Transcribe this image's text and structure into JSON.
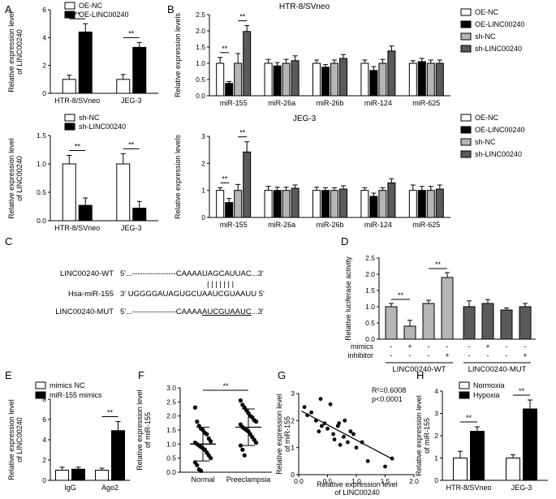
{
  "panel_labels": [
    "A",
    "B",
    "C",
    "D",
    "E",
    "F",
    "G",
    "H"
  ],
  "colors": {
    "white": "#ffffff",
    "black": "#000000",
    "light_gray": "#b5b5b5",
    "dark_gray": "#5a5a5a",
    "mid_gray": "#999999",
    "stroke": "#000000"
  },
  "chart_data": [
    {
      "id": "A_top",
      "type": "bar",
      "panel": "A",
      "ylabel": "Relative expression level of LINC00240",
      "ylim": [
        0,
        6
      ],
      "yticks": [
        "0",
        "2",
        "4",
        "6"
      ],
      "categories": [
        "HTR-8/SVneo",
        "JEG-3"
      ],
      "legend": [
        "OE-NC",
        "OE-LINC00240"
      ],
      "series": [
        {
          "name": "OE-NC",
          "values": [
            1.0,
            1.0
          ],
          "errors": [
            0.3,
            0.35
          ]
        },
        {
          "name": "OE-LINC00240",
          "values": [
            4.4,
            3.3
          ],
          "errors": [
            0.6,
            0.35
          ]
        }
      ],
      "significance": [
        "**",
        "**"
      ]
    },
    {
      "id": "A_bottom",
      "type": "bar",
      "panel": "A",
      "ylabel": "Relative expression level of LINC00240",
      "ylim": [
        0,
        1.5
      ],
      "yticks": [
        "0.0",
        "0.5",
        "1.0",
        "1.5"
      ],
      "categories": [
        "HTR-8/SVneo",
        "JEG-3"
      ],
      "legend": [
        "sh-NC",
        "sh-LINC00240"
      ],
      "series": [
        {
          "name": "sh-NC",
          "values": [
            1.0,
            1.0
          ],
          "errors": [
            0.15,
            0.18
          ]
        },
        {
          "name": "sh-LINC00240",
          "values": [
            0.27,
            0.22
          ],
          "errors": [
            0.13,
            0.12
          ]
        }
      ],
      "significance": [
        "**",
        "**"
      ]
    },
    {
      "id": "B_top",
      "type": "bar",
      "panel": "B",
      "title": "HTR-8/SVneo",
      "ylabel": "Relative expression levels",
      "ylim": [
        0,
        2.5
      ],
      "yticks": [
        "0.0",
        "0.5",
        "1.0",
        "1.5",
        "2.0",
        "2.5"
      ],
      "categories": [
        "miR-155",
        "miR-26a",
        "miR-26b",
        "miR-124",
        "miR-625"
      ],
      "legend": [
        "OE-NC",
        "OE-LINC00240",
        "sh-NC",
        "sh-LINC00240"
      ],
      "series": [
        {
          "name": "OE-NC",
          "values": [
            1.0,
            1.0,
            1.0,
            1.0,
            1.0
          ],
          "errors": [
            0.18,
            0.12,
            0.1,
            0.1,
            0.08
          ]
        },
        {
          "name": "OE-LINC00240",
          "values": [
            0.38,
            0.92,
            0.88,
            0.78,
            1.05
          ],
          "errors": [
            0.06,
            0.1,
            0.08,
            0.12,
            0.1
          ]
        },
        {
          "name": "sh-NC",
          "values": [
            1.0,
            1.0,
            1.0,
            1.0,
            1.0
          ],
          "errors": [
            0.3,
            0.12,
            0.1,
            0.12,
            0.1
          ]
        },
        {
          "name": "sh-LINC00240",
          "values": [
            1.98,
            1.08,
            1.15,
            1.38,
            1.0
          ],
          "errors": [
            0.18,
            0.15,
            0.12,
            0.15,
            0.1
          ]
        }
      ],
      "significance": [
        "**",
        "**"
      ]
    },
    {
      "id": "B_bottom",
      "type": "bar",
      "panel": "B",
      "title": "JEG-3",
      "ylabel": "Relative expression levels",
      "ylim": [
        0,
        3
      ],
      "yticks": [
        "0",
        "1",
        "2",
        "3"
      ],
      "categories": [
        "miR-155",
        "miR-26a",
        "miR-26b",
        "miR-124",
        "miR-625"
      ],
      "legend": [
        "OE-NC",
        "OE-LINC00240",
        "sh-NC",
        "sh-LINC00240"
      ],
      "series": [
        {
          "name": "OE-NC",
          "values": [
            1.0,
            1.0,
            1.0,
            1.0,
            1.0
          ],
          "errors": [
            0.1,
            0.15,
            0.12,
            0.1,
            0.2
          ]
        },
        {
          "name": "OE-LINC00240",
          "values": [
            0.55,
            1.0,
            1.0,
            0.78,
            1.0
          ],
          "errors": [
            0.15,
            0.12,
            0.1,
            0.12,
            0.15
          ]
        },
        {
          "name": "sh-NC",
          "values": [
            1.0,
            1.0,
            1.0,
            1.0,
            1.0
          ],
          "errors": [
            0.22,
            0.12,
            0.1,
            0.1,
            0.15
          ]
        },
        {
          "name": "sh-LINC00240",
          "values": [
            2.42,
            1.08,
            1.05,
            1.28,
            1.05
          ],
          "errors": [
            0.38,
            0.12,
            0.12,
            0.15,
            0.15
          ]
        }
      ],
      "significance": [
        "**",
        "**"
      ]
    },
    {
      "id": "D",
      "type": "bar",
      "panel": "D",
      "ylabel": "Relative luciferase activity",
      "ylim": [
        0,
        2.5
      ],
      "yticks": [
        "0.0",
        "0.5",
        "1.0",
        "1.5",
        "2.0",
        "2.5"
      ],
      "groups": [
        "LINC00240-WT",
        "LINC00240-MUT"
      ],
      "row_labels": [
        "mimics",
        "inhibitor"
      ],
      "mimics_marks": [
        "-",
        "+",
        "-",
        "-",
        "-",
        "+",
        "-",
        "-"
      ],
      "inhibitor_marks": [
        "-",
        "-",
        "-",
        "+",
        "-",
        "-",
        "-",
        "+"
      ],
      "values": [
        1.0,
        0.4,
        1.1,
        1.9,
        1.0,
        1.1,
        0.9,
        1.0
      ],
      "errors": [
        0.1,
        0.18,
        0.1,
        0.15,
        0.18,
        0.12,
        0.06,
        0.1
      ],
      "significance": [
        "**",
        "**"
      ]
    },
    {
      "id": "E",
      "type": "bar",
      "panel": "E",
      "ylabel": "Relative expression level of LINC00240",
      "ylim": [
        0,
        8
      ],
      "yticks": [
        "0",
        "2",
        "4",
        "6",
        "8"
      ],
      "categories": [
        "IgG",
        "Ago2"
      ],
      "legend": [
        "mimics NC",
        "miR-155 mimics"
      ],
      "series": [
        {
          "name": "mimics NC",
          "values": [
            1.0,
            1.0
          ],
          "errors": [
            0.3,
            0.2
          ]
        },
        {
          "name": "miR-155 mimics",
          "values": [
            1.1,
            4.9
          ],
          "errors": [
            0.2,
            0.9
          ]
        }
      ],
      "significance": [
        "**"
      ]
    },
    {
      "id": "F",
      "type": "scatter",
      "panel": "F",
      "ylabel": "Relative expression level of miR-155",
      "ylim": [
        0,
        3
      ],
      "yticks": [
        "0.0",
        "0.5",
        "1.0",
        "1.5",
        "2.0",
        "2.5",
        "3.0"
      ],
      "categories": [
        "Normal",
        "Preeclampsia"
      ],
      "series": [
        {
          "name": "Normal",
          "mean": 1.0,
          "sd": 0.6,
          "values": [
            2.3,
            1.8,
            1.65,
            1.55,
            1.5,
            1.4,
            1.35,
            1.2,
            1.1,
            1.05,
            1.0,
            0.95,
            0.9,
            0.85,
            0.8,
            0.7,
            0.6,
            0.5,
            0.35,
            0.25,
            0.1,
            0.05
          ]
        },
        {
          "name": "Preeclampsia",
          "mean": 1.6,
          "sd": 0.65,
          "values": [
            2.55,
            2.4,
            2.3,
            2.2,
            2.1,
            2.0,
            1.95,
            1.85,
            1.8,
            1.7,
            1.6,
            1.55,
            1.5,
            1.45,
            1.35,
            1.25,
            1.15,
            1.05,
            0.95,
            0.8,
            0.6
          ]
        }
      ],
      "significance": [
        "**"
      ]
    },
    {
      "id": "G",
      "type": "scatter",
      "panel": "G",
      "xlabel": "Relative expression level of LINC00240",
      "ylabel": "Relative expression level of miR-155",
      "xlim": [
        0,
        2
      ],
      "ylim": [
        0,
        3
      ],
      "xticks": [
        "0.0",
        "0.5",
        "1.0",
        "1.5",
        "2.0"
      ],
      "yticks": [
        "0",
        "1",
        "2",
        "3"
      ],
      "annotation": [
        "R²=0.6008",
        "p<0.0001"
      ],
      "points": [
        [
          0.1,
          2.5
        ],
        [
          0.15,
          2.2
        ],
        [
          0.22,
          2.3
        ],
        [
          0.3,
          2.0
        ],
        [
          0.35,
          1.6
        ],
        [
          0.38,
          2.8
        ],
        [
          0.4,
          1.8
        ],
        [
          0.45,
          1.9
        ],
        [
          0.5,
          1.7
        ],
        [
          0.55,
          2.6
        ],
        [
          0.6,
          1.5
        ],
        [
          0.62,
          1.3
        ],
        [
          0.68,
          1.8
        ],
        [
          0.7,
          1.9
        ],
        [
          0.72,
          1.1
        ],
        [
          0.78,
          1.4
        ],
        [
          0.8,
          2.0
        ],
        [
          0.85,
          1.2
        ],
        [
          0.9,
          1.6
        ],
        [
          0.95,
          1.5
        ],
        [
          1.0,
          1.0
        ],
        [
          1.1,
          1.2
        ],
        [
          1.2,
          0.5
        ],
        [
          1.5,
          0.3
        ],
        [
          1.62,
          0.6
        ]
      ],
      "fit_line": [
        [
          0.05,
          2.35
        ],
        [
          1.65,
          0.55
        ]
      ]
    },
    {
      "id": "H",
      "type": "bar",
      "panel": "H",
      "ylabel": "Relative expression level of miR-155",
      "ylim": [
        0,
        4
      ],
      "yticks": [
        "0",
        "1",
        "2",
        "3",
        "4"
      ],
      "categories": [
        "HTR-8/SVneo",
        "JEG-3"
      ],
      "legend": [
        "Normoxia",
        "Hypoxia"
      ],
      "series": [
        {
          "name": "Normoxia",
          "values": [
            1.0,
            1.0
          ],
          "errors": [
            0.3,
            0.15
          ]
        },
        {
          "name": "Hypoxia",
          "values": [
            2.2,
            3.2
          ],
          "errors": [
            0.2,
            0.4
          ]
        }
      ],
      "significance": [
        "**",
        "**"
      ]
    }
  ],
  "panel_c": {
    "rows": [
      {
        "label": "LINC00240-WT",
        "seq_prefix": "5'...-----------------CAAAA",
        "seq_site": "UAGCAUUAC",
        "seq_suffix": "...3'"
      },
      {
        "label": "Hsa-miR-155",
        "seq_prefix": "3' UGGGGAUAGUGCUAAU",
        "seq_site": "CGUAAUU",
        "seq_suffix": " 5'"
      },
      {
        "label": "LINC00240-MUT",
        "seq_prefix": "5'...-----------------CAAAA",
        "seq_site": "AUCGUAAUC",
        "seq_suffix": "...3'"
      }
    ],
    "pairing": "| | | | | | |"
  }
}
